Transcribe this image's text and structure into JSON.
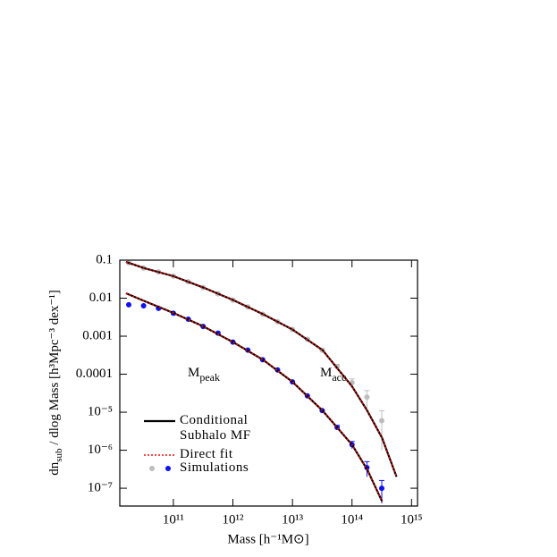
{
  "chart_data": {
    "type": "line",
    "xlabel": "Mass [h⁻¹M⊙]",
    "ylabel": {
      "text": "dn",
      "sub": "sub",
      "rest": " / dlog Mass [h³Mpc⁻³ dex⁻¹]"
    },
    "annotations": [
      {
        "text": "M",
        "sub": "peak"
      },
      {
        "text": "M",
        "sub": "acc"
      }
    ],
    "log_x": true,
    "log_y": true,
    "xlim": [
      12600000000,
      1260000000000000
    ],
    "ylim": [
      3.4e-08,
      0.1
    ],
    "xticks": [
      {
        "value": 100000000000.0,
        "label": "10¹¹"
      },
      {
        "value": 1000000000000.0,
        "label": "10¹²"
      },
      {
        "value": 10000000000000.0,
        "label": "10¹³"
      },
      {
        "value": 100000000000000.0,
        "label": "10¹⁴"
      },
      {
        "value": 1000000000000000.0,
        "label": "10¹⁵"
      }
    ],
    "yticks": [
      0.1,
      0.01,
      0.001,
      0.0001,
      {
        "value": 1e-05,
        "label": "10⁻⁵"
      },
      {
        "value": 1e-06,
        "label": "10⁻⁶"
      },
      {
        "value": 1e-07,
        "label": "10⁻⁷"
      }
    ],
    "x": [
      16000000000,
      32000000000,
      100000000000,
      320000000000,
      1000000000000,
      3200000000000,
      10000000000000,
      32000000000000,
      100000000000000,
      180000000000000,
      320000000000000,
      560000000000000
    ],
    "series": [
      {
        "name": "Conditional Subhalo MF",
        "color": "#000000",
        "dash": "solid",
        "values": [
          0.09,
          0.062,
          0.038,
          0.019,
          0.009,
          0.0038,
          0.0015,
          0.00043,
          4.8e-05,
          1.1e-05,
          2.1e-06,
          2e-07
        ]
      },
      {
        "color": "#000000",
        "dash": "solid",
        "values": [
          0.0135,
          0.0085,
          0.0041,
          0.0018,
          0.0007,
          0.00024,
          6.3e-05,
          1.1e-05,
          1.4e-06,
          3.1e-07,
          4.5e-08,
          null
        ]
      },
      {
        "name": "Direct fit",
        "color": "#e8120c",
        "dash": "dotted",
        "values": [
          0.09,
          0.062,
          0.038,
          0.019,
          0.009,
          0.0038,
          0.0015,
          0.00043,
          4.8e-05,
          1.1e-05,
          2.1e-06,
          2e-07
        ]
      },
      {
        "color": "#e8120c",
        "dash": "dotted",
        "values": [
          0.0135,
          0.0085,
          0.0041,
          0.0018,
          0.0007,
          0.00024,
          6.3e-05,
          1.1e-05,
          1.4e-06,
          3.1e-07,
          4.5e-08,
          null
        ]
      },
      {
        "name": "Simulations",
        "color": "#bdbdbd",
        "mode": "markers",
        "x": [
          17800000000,
          31600000000,
          56200000000,
          100000000000,
          178000000000,
          316000000000,
          562000000000,
          1000000000000,
          1780000000000,
          3160000000000,
          5620000000000,
          10000000000000,
          17800000000000,
          31600000000000,
          56200000000000,
          100000000000000,
          178000000000000,
          316000000000000
        ],
        "values": [
          0.085,
          0.062,
          0.049,
          0.038,
          0.027,
          0.019,
          0.013,
          0.0089,
          0.0059,
          0.0038,
          0.0024,
          0.0015,
          0.00083,
          0.00043,
          0.00016,
          6e-05,
          2.5e-05,
          6e-06
        ],
        "errors": [
          0,
          0,
          0,
          0,
          0,
          0,
          0,
          0,
          0,
          0,
          0,
          0,
          6e-05,
          4e-05,
          2e-05,
          1.5e-05,
          1.2e-05,
          5e-06
        ]
      },
      {
        "color": "#1010f0",
        "mode": "markers",
        "x": [
          17800000000,
          31600000000,
          56200000000,
          100000000000,
          178000000000,
          316000000000,
          562000000000,
          1000000000000,
          1780000000000,
          3160000000000,
          5620000000000,
          10000000000000,
          17800000000000,
          31600000000000,
          56200000000000,
          100000000000000,
          178000000000000,
          316000000000000
        ],
        "values": [
          0.0067,
          0.0063,
          0.0054,
          0.004,
          0.0028,
          0.0018,
          0.0012,
          0.0007,
          0.00043,
          0.00024,
          0.00013,
          6.3e-05,
          2.7e-05,
          1.1e-05,
          4e-06,
          1.4e-06,
          3.5e-07,
          1e-07
        ],
        "errors": [
          0,
          0,
          0,
          0,
          0,
          0,
          0,
          0,
          0,
          0,
          0,
          0,
          0,
          0,
          5e-07,
          3e-07,
          1.5e-07,
          6e-08
        ]
      }
    ]
  }
}
